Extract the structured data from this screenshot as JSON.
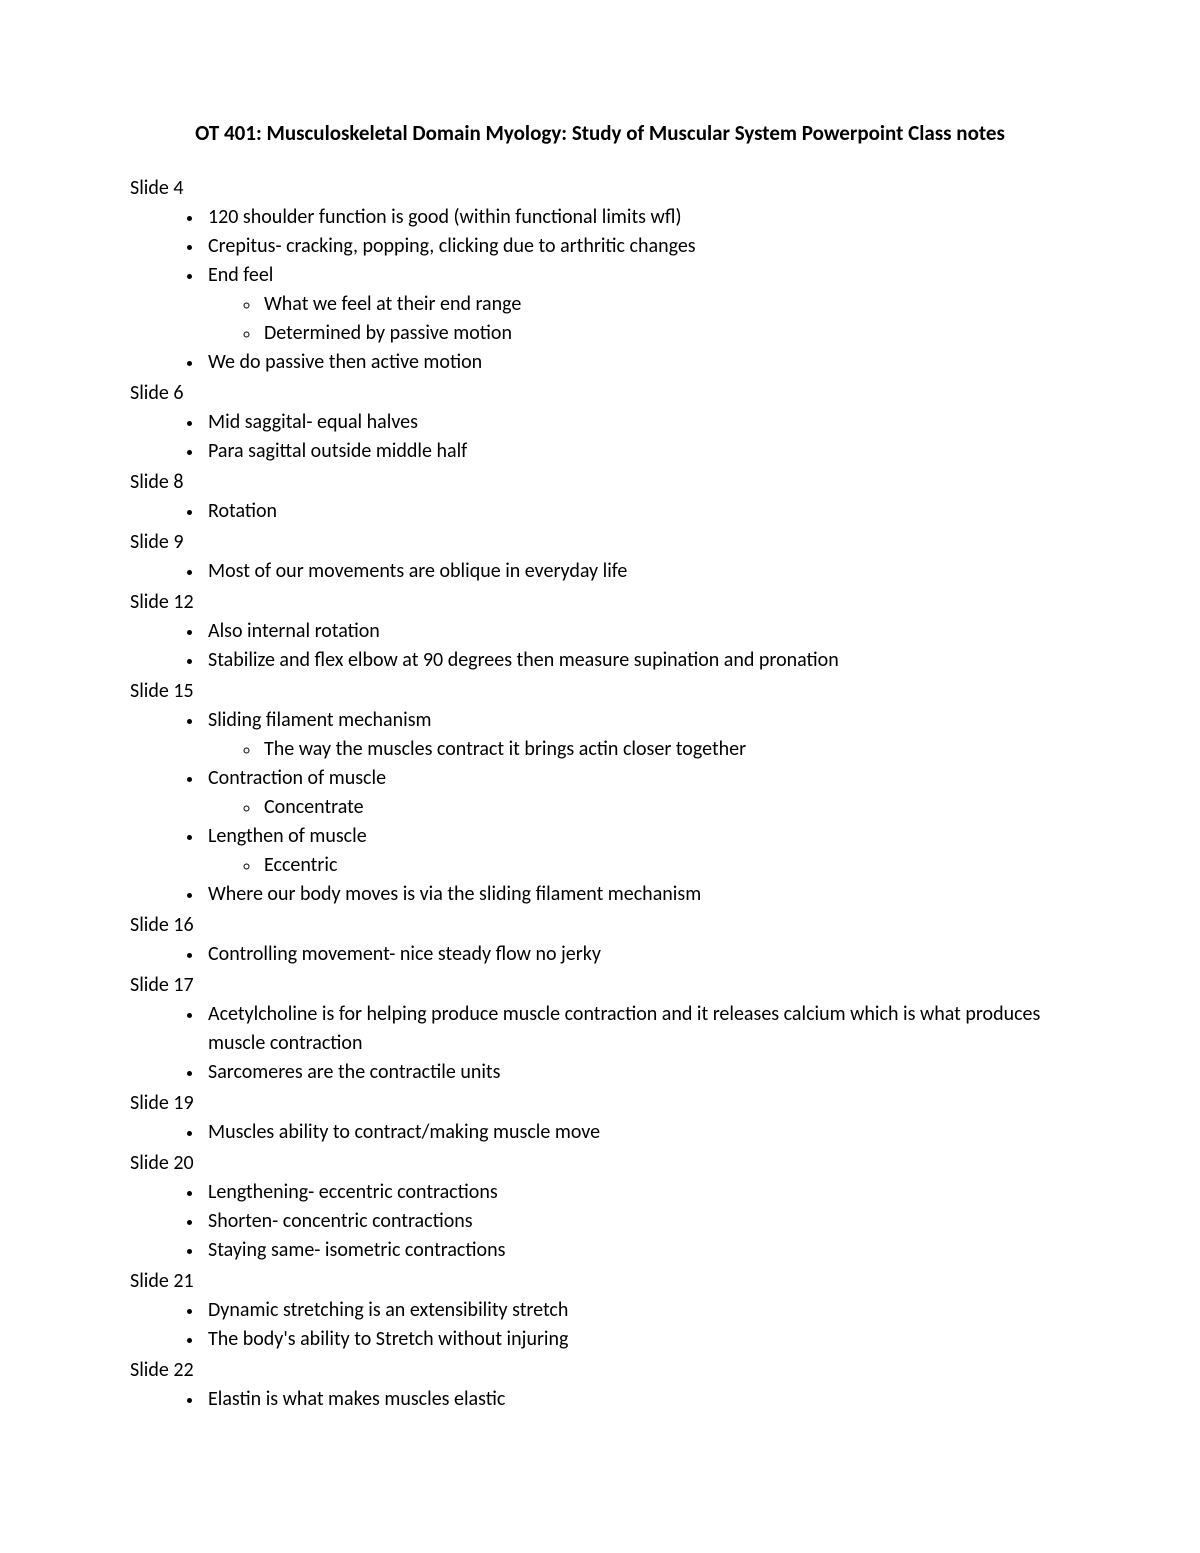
{
  "title": "OT 401: Musculoskeletal Domain Myology: Study of Muscular System Powerpoint Class notes",
  "sections": [
    {
      "heading": "Slide 4",
      "items": [
        {
          "text": "120 shoulder function is good (within functional limits wfl)"
        },
        {
          "text": "Crepitus- cracking, popping, clicking due to arthritic changes"
        },
        {
          "text": "End feel",
          "sub": [
            "What we feel at their end range",
            "Determined by passive motion"
          ]
        },
        {
          "text": "We do passive then active motion"
        }
      ]
    },
    {
      "heading": "Slide 6",
      "items": [
        {
          "text": "Mid saggital- equal halves"
        },
        {
          "text": "Para sagittal outside middle half"
        }
      ]
    },
    {
      "heading": "Slide 8",
      "items": [
        {
          "text": "Rotation"
        }
      ]
    },
    {
      "heading": "Slide 9",
      "items": [
        {
          "text": "Most of our movements are oblique in everyday life"
        }
      ]
    },
    {
      "heading": "Slide 12",
      "items": [
        {
          "text": "Also internal rotation"
        },
        {
          "text": "Stabilize and flex elbow at 90 degrees then measure supination and pronation"
        }
      ]
    },
    {
      "heading": "Slide 15",
      "items": [
        {
          "text": "Sliding filament mechanism",
          "sub": [
            "The way the muscles contract it brings actin closer together"
          ]
        },
        {
          "text": "Contraction of muscle",
          "sub": [
            "Concentrate"
          ]
        },
        {
          "text": "Lengthen of muscle",
          "sub": [
            "Eccentric"
          ]
        },
        {
          "text": "Where our body moves is via the sliding filament mechanism"
        }
      ]
    },
    {
      "heading": "Slide 16",
      "items": [
        {
          "text": "Controlling movement- nice steady flow no jerky"
        }
      ]
    },
    {
      "heading": "Slide 17",
      "items": [
        {
          "text": "Acetylcholine is for helping produce muscle contraction and it releases calcium which is what produces muscle contraction"
        },
        {
          "text": "Sarcomeres are the contractile units"
        }
      ]
    },
    {
      "heading": "Slide 19",
      "items": [
        {
          "text": "Muscles ability to contract/making muscle move"
        }
      ]
    },
    {
      "heading": "Slide 20",
      "items": [
        {
          "text": "Lengthening- eccentric contractions"
        },
        {
          "text": "Shorten- concentric contractions"
        },
        {
          "text": "Staying same- isometric contractions"
        }
      ]
    },
    {
      "heading": "Slide 21",
      "items": [
        {
          "text": "Dynamic stretching is an extensibility stretch"
        },
        {
          "text": "The body's ability to Stretch without injuring"
        }
      ]
    },
    {
      "heading": "Slide 22",
      "items": [
        {
          "text": "Elastin is what makes muscles elastic"
        }
      ]
    }
  ]
}
